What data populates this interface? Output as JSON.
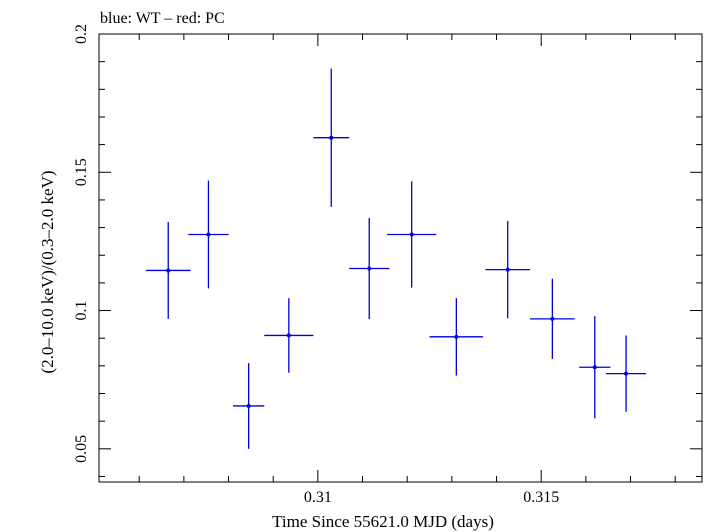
{
  "chart_data": {
    "type": "scatter",
    "title": "blue: WT – red: PC",
    "xlabel": "Time Since 55621.0 MJD (days)",
    "ylabel": "(2.0–10.0 keV)/(0.3–2.0 keV)",
    "xlim": [
      0.3051,
      0.3186
    ],
    "ylim": [
      0.038,
      0.2
    ],
    "x_ticks": [
      0.31,
      0.315
    ],
    "x_tick_labels": [
      "0.31",
      "0.315"
    ],
    "y_ticks": [
      0.05,
      0.1,
      0.15,
      0.2
    ],
    "y_tick_labels": [
      "0.05",
      "0.1",
      "0.15",
      "0.2"
    ],
    "series": [
      {
        "name": "WT",
        "color": "#0000dd",
        "points": [
          {
            "x": 0.30665,
            "xerr": 0.0005,
            "y": 0.1145,
            "yerr": 0.0175
          },
          {
            "x": 0.30755,
            "xerr": 0.00045,
            "y": 0.1275,
            "yerr": 0.0195
          },
          {
            "x": 0.30845,
            "xerr": 0.00035,
            "y": 0.0655,
            "yerr": 0.0155
          },
          {
            "x": 0.30935,
            "xerr": 0.00055,
            "y": 0.091,
            "yerr": 0.0135
          },
          {
            "x": 0.3103,
            "xerr": 0.0004,
            "y": 0.1625,
            "yerr": 0.025
          },
          {
            "x": 0.31115,
            "xerr": 0.00045,
            "y": 0.1152,
            "yerr": 0.0183
          },
          {
            "x": 0.3121,
            "xerr": 0.00055,
            "y": 0.1275,
            "yerr": 0.0192
          },
          {
            "x": 0.3131,
            "xerr": 0.0006,
            "y": 0.0905,
            "yerr": 0.014
          },
          {
            "x": 0.31425,
            "xerr": 0.0005,
            "y": 0.1148,
            "yerr": 0.0176
          },
          {
            "x": 0.31525,
            "xerr": 0.0005,
            "y": 0.097,
            "yerr": 0.0145
          },
          {
            "x": 0.3162,
            "xerr": 0.00035,
            "y": 0.0795,
            "yerr": 0.0185
          },
          {
            "x": 0.3169,
            "xerr": 0.00045,
            "y": 0.0772,
            "yerr": 0.0138
          }
        ]
      }
    ],
    "grid": false,
    "legend": "none"
  }
}
